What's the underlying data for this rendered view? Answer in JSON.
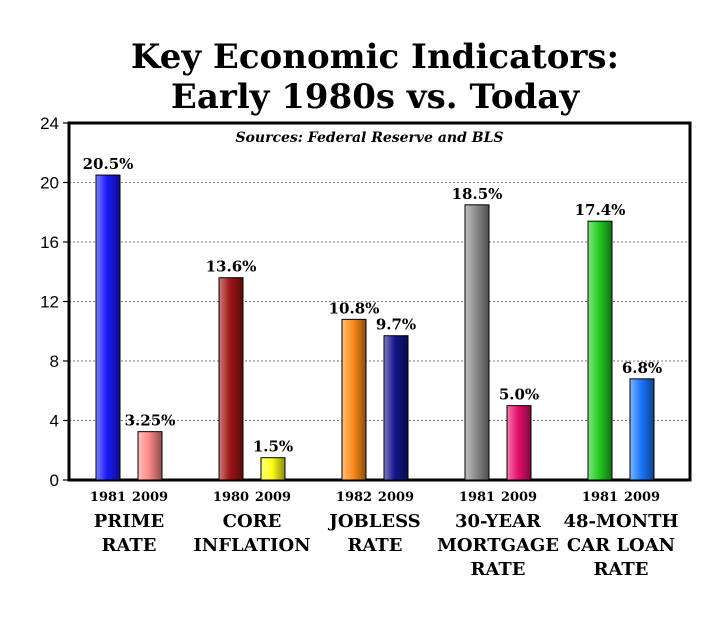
{
  "chart_data": {
    "type": "bar",
    "title_line1": "Key Economic Indicators:",
    "title_line2": "Early 1980s vs. Today",
    "subtitle": "Sources: Federal Reserve and BLS",
    "ylim": [
      0,
      24
    ],
    "yticks": [
      "0",
      "4",
      "8",
      "12",
      "16",
      "20",
      "24"
    ],
    "ytick_values": [
      0,
      4,
      8,
      12,
      16,
      20,
      24
    ],
    "grid": true,
    "groups": [
      {
        "category_lines": [
          "PRIME",
          "RATE"
        ],
        "bars": [
          {
            "year": "1981",
            "value": 20.5,
            "label": "20.5%",
            "color": "#1a1aff"
          },
          {
            "year": "2009",
            "value": 3.25,
            "label": "3.25%",
            "color": "#ff8a8a"
          }
        ]
      },
      {
        "category_lines": [
          "CORE",
          "INFLATION"
        ],
        "bars": [
          {
            "year": "1980",
            "value": 13.6,
            "label": "13.6%",
            "color": "#a01414"
          },
          {
            "year": "2009",
            "value": 1.5,
            "label": "1.5%",
            "color": "#ffff1a"
          }
        ]
      },
      {
        "category_lines": [
          "JOBLESS",
          "RATE"
        ],
        "bars": [
          {
            "year": "1982",
            "value": 10.8,
            "label": "10.8%",
            "color": "#ff8c1a"
          },
          {
            "year": "2009",
            "value": 9.7,
            "label": "9.7%",
            "color": "#14148c"
          }
        ]
      },
      {
        "category_lines": [
          "30-YEAR",
          "MORTGAGE",
          "RATE"
        ],
        "bars": [
          {
            "year": "1981",
            "value": 18.5,
            "label": "18.5%",
            "color": "#8c8c8c"
          },
          {
            "year": "2009",
            "value": 5.0,
            "label": "5.0%",
            "color": "#e6106e"
          }
        ]
      },
      {
        "category_lines": [
          "48-MONTH",
          "CAR LOAN",
          "RATE"
        ],
        "bars": [
          {
            "year": "1981",
            "value": 17.4,
            "label": "17.4%",
            "color": "#22cc22"
          },
          {
            "year": "2009",
            "value": 6.8,
            "label": "6.8%",
            "color": "#1a78ff"
          }
        ]
      }
    ]
  }
}
